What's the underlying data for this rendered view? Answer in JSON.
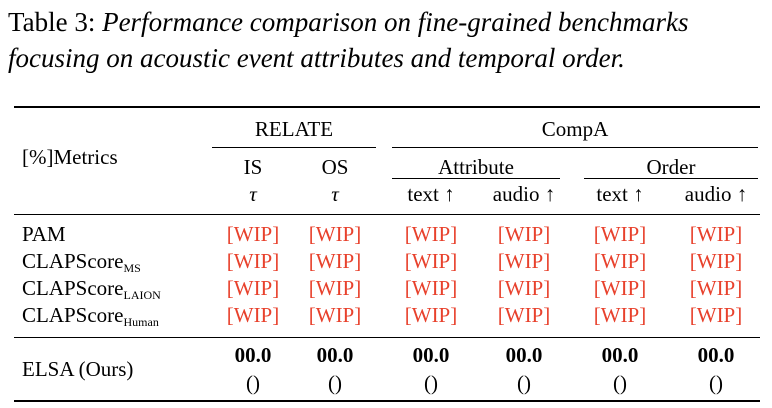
{
  "caption": {
    "label": "Table 3:",
    "text": "Performance comparison on fine-grained benchmarks focusing on acoustic event attributes and temporal order."
  },
  "table": {
    "metrics_header": "[%]Metrics",
    "group_relate": "RELATE",
    "group_compa": "CompA",
    "subgroup_attribute": "Attribute",
    "subgroup_order": "Order",
    "col_is": "IS",
    "col_os": "OS",
    "tau_is": "τ",
    "tau_os": "τ",
    "col_attr_text": "text ↑",
    "col_attr_audio": "audio ↑",
    "col_order_text": "text ↑",
    "col_order_audio": "audio ↑",
    "rows": [
      {
        "name": "PAM",
        "sub": "",
        "values": [
          "[WIP]",
          "[WIP]",
          "[WIP]",
          "[WIP]",
          "[WIP]",
          "[WIP]"
        ]
      },
      {
        "name": "CLAPScore",
        "sub": "MS",
        "values": [
          "[WIP]",
          "[WIP]",
          "[WIP]",
          "[WIP]",
          "[WIP]",
          "[WIP]"
        ]
      },
      {
        "name": "CLAPScore",
        "sub": "LAION",
        "values": [
          "[WIP]",
          "[WIP]",
          "[WIP]",
          "[WIP]",
          "[WIP]",
          "[WIP]"
        ]
      },
      {
        "name": "CLAPScore",
        "sub": "Human",
        "values": [
          "[WIP]",
          "[WIP]",
          "[WIP]",
          "[WIP]",
          "[WIP]",
          "[WIP]"
        ]
      }
    ],
    "ours": {
      "name": "ELSA (Ours)",
      "values": [
        "00.0",
        "00.0",
        "00.0",
        "00.0",
        "00.0",
        "00.0"
      ],
      "subvalues": [
        "()",
        "()",
        "()",
        "()",
        "()",
        "()"
      ]
    }
  },
  "colors": {
    "wip": "#e8412c",
    "text": "#000000"
  }
}
